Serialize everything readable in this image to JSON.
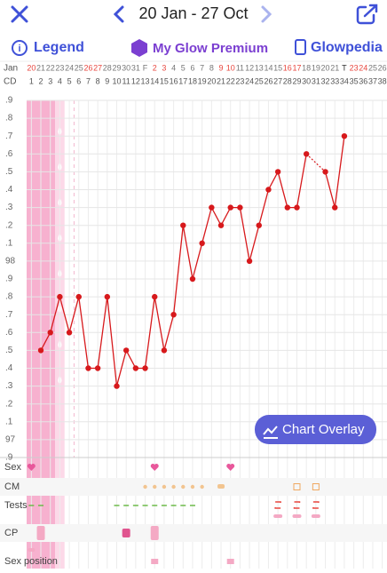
{
  "header": {
    "date_range": "20 Jan - 27 Oct"
  },
  "toolbar": {
    "legend": "Legend",
    "premium": "My Glow Premium",
    "glowpedia": "Glowpedia"
  },
  "chart_data": {
    "type": "line",
    "month_label": "Jan",
    "cycle_day_label": "CD",
    "dates": [
      "20",
      "21",
      "22",
      "23",
      "24",
      "25",
      "26",
      "27",
      "28",
      "29",
      "30",
      "31",
      "F",
      "2",
      "3",
      "4",
      "5",
      "6",
      "7",
      "8",
      "9",
      "10",
      "11",
      "12",
      "13",
      "14",
      "15",
      "16",
      "17",
      "18",
      "19",
      "20",
      "21",
      "T",
      "23",
      "24",
      "25",
      "26"
    ],
    "date_colors": [
      "#e8473f",
      "#777",
      "#777",
      "#777",
      "#777",
      "#777",
      "#e8473f",
      "#e8473f",
      "#777",
      "#777",
      "#777",
      "#777",
      "#777",
      "#e8473f",
      "#e8473f",
      "#777",
      "#777",
      "#777",
      "#777",
      "#777",
      "#e8473f",
      "#e8473f",
      "#777",
      "#777",
      "#777",
      "#777",
      "#777",
      "#e8473f",
      "#e8473f",
      "#777",
      "#777",
      "#777",
      "#777",
      "#333",
      "#e8473f",
      "#e8473f",
      "#777",
      "#777"
    ],
    "cycle_days": [
      1,
      2,
      3,
      4,
      5,
      6,
      7,
      8,
      9,
      10,
      11,
      12,
      13,
      14,
      15,
      16,
      17,
      18,
      19,
      20,
      21,
      22,
      23,
      24,
      25,
      26,
      27,
      28,
      29,
      30,
      31,
      32,
      33,
      34,
      35,
      36,
      37,
      38
    ],
    "xlim": [
      0.5,
      38.5
    ],
    "x": [
      2,
      3,
      4,
      5,
      6,
      7,
      8,
      9,
      10,
      11,
      12,
      13,
      14,
      15,
      16,
      17,
      18,
      19,
      20,
      21,
      22,
      23,
      24,
      25,
      26,
      27,
      28,
      29,
      30,
      31,
      32,
      33,
      34
    ],
    "values": [
      97.5,
      97.6,
      97.8,
      97.6,
      97.8,
      97.4,
      97.4,
      97.8,
      97.3,
      97.5,
      97.4,
      97.4,
      97.8,
      97.5,
      97.7,
      98.2,
      97.9,
      98.1,
      98.3,
      98.2,
      98.3,
      98.3,
      98.0,
      98.2,
      98.4,
      98.5,
      98.3,
      98.3,
      98.6,
      null,
      98.5,
      98.3,
      98.7
    ],
    "color": "#d7191c",
    "ylim": [
      96.9,
      98.9
    ],
    "yticks": [
      {
        "value": 98.9,
        "label": ".9"
      },
      {
        "value": 98.8,
        "label": ".8"
      },
      {
        "value": 98.7,
        "label": ".7"
      },
      {
        "value": 98.6,
        "label": ".6"
      },
      {
        "value": 98.5,
        "label": ".5"
      },
      {
        "value": 98.4,
        "label": ".4"
      },
      {
        "value": 98.3,
        "label": ".3"
      },
      {
        "value": 98.2,
        "label": ".2"
      },
      {
        "value": 98.1,
        "label": ".1"
      },
      98,
      {
        "value": 97.9,
        "label": ".9"
      },
      {
        "value": 97.8,
        "label": ".8"
      },
      {
        "value": 97.7,
        "label": ".7"
      },
      {
        "value": 97.6,
        "label": ".6"
      },
      {
        "value": 97.5,
        "label": ".5"
      },
      {
        "value": 97.4,
        "label": ".4"
      },
      {
        "value": 97.3,
        "label": ".3"
      },
      {
        "value": 97.2,
        "label": ".2"
      },
      {
        "value": 97.1,
        "label": ".1"
      },
      97,
      {
        "value": 96.9,
        "label": ".9"
      }
    ],
    "grid": true,
    "button": "Chart Overlay",
    "rows": [
      "Sex",
      "CM",
      "Tests",
      "CP",
      "Sex position"
    ]
  }
}
